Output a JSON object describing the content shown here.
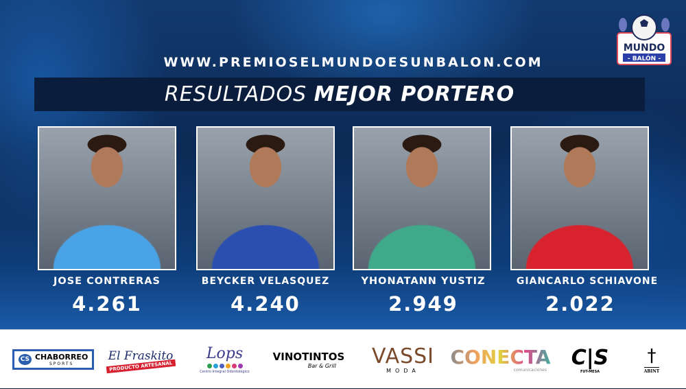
{
  "header": {
    "url": "WWW.PREMIOSELMUNDOESUNBALON.COM",
    "title_light": "RESULTADOS",
    "title_bold": "MEJOR PORTERO"
  },
  "logo": {
    "top": "MUNDO",
    "bottom": "- BALÓN -"
  },
  "players": [
    {
      "name": "JOSE CONTRERAS",
      "score": "4.261",
      "jersey_color": "#4aa3e6"
    },
    {
      "name": "BEYCKER VELASQUEZ",
      "score": "4.240",
      "jersey_color": "#2a4fb0"
    },
    {
      "name": "YHONATANN YUSTIZ",
      "score": "2.949",
      "jersey_color": "#3fa98a"
    },
    {
      "name": "GIANCARLO SCHIAVONE",
      "score": "2.022",
      "jersey_color": "#d8232f"
    }
  ],
  "sponsors": [
    {
      "name": "CHABORREO",
      "sub": "SPORTS"
    },
    {
      "name": "El Fraskito",
      "sub": "PRODUCTO ARTESANAL"
    },
    {
      "name": "Lops",
      "sub": "Centro Integral Odontológico"
    },
    {
      "name": "VINOTINTOS",
      "sub": "Bar & Grill"
    },
    {
      "name": "VASSI",
      "sub": "MODA"
    },
    {
      "name": "CONECTA",
      "sub": "comunicaciones"
    },
    {
      "name": "C|S",
      "sub": "FUT-MESA"
    },
    {
      "name": "ABINT",
      "sub": ""
    }
  ]
}
